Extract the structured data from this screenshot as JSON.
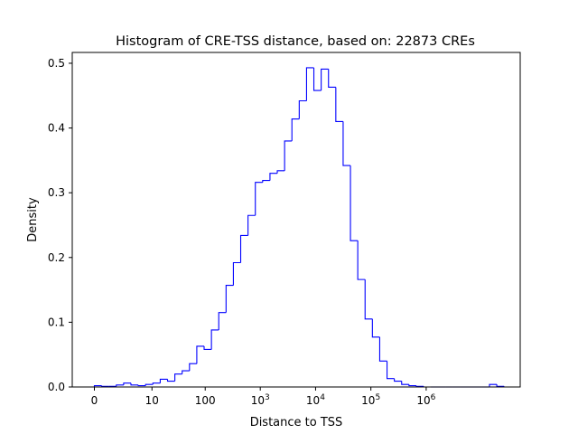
{
  "chart_data": {
    "type": "histogram",
    "title": "Histogram of CRE-TSS distance, based on: 22873 CREs",
    "xlabel": "Distance to TSS",
    "ylabel": "Density",
    "x_scale": "log1p (log10 of distance + 1)",
    "xlim": [
      -0.4,
      7.7
    ],
    "ylim": [
      0,
      0.5167
    ],
    "x_ticks": [
      {
        "value": 0,
        "label": "0"
      },
      {
        "value": 1.0414,
        "label": "10"
      },
      {
        "value": 2.0043,
        "label": "100"
      },
      {
        "value": 3.0,
        "label": "10",
        "sup": "3"
      },
      {
        "value": 4.0,
        "label": "10",
        "sup": "4"
      },
      {
        "value": 5.0,
        "label": "10",
        "sup": "5"
      },
      {
        "value": 6.0,
        "label": "10",
        "sup": "6"
      }
    ],
    "y_ticks": [
      {
        "value": 0.0,
        "label": "0.0"
      },
      {
        "value": 0.1,
        "label": "0.1"
      },
      {
        "value": 0.2,
        "label": "0.2"
      },
      {
        "value": 0.3,
        "label": "0.3"
      },
      {
        "value": 0.4,
        "label": "0.4"
      },
      {
        "value": 0.5,
        "label": "0.5"
      }
    ],
    "bin_start": 0.0,
    "bin_width": 0.1323,
    "densities": [
      0.002,
      0.001,
      0.001,
      0.003,
      0.006,
      0.003,
      0.002,
      0.004,
      0.006,
      0.012,
      0.009,
      0.02,
      0.025,
      0.036,
      0.063,
      0.058,
      0.088,
      0.115,
      0.157,
      0.192,
      0.234,
      0.265,
      0.316,
      0.319,
      0.33,
      0.334,
      0.38,
      0.414,
      0.442,
      0.493,
      0.458,
      0.491,
      0.463,
      0.41,
      0.342,
      0.226,
      0.166,
      0.105,
      0.077,
      0.04,
      0.013,
      0.009,
      0.004,
      0.002,
      0.001,
      0,
      0,
      0,
      0,
      0,
      0,
      0,
      0,
      0,
      0.004,
      0.001
    ],
    "color": "#0000ff",
    "grid": false,
    "legend": "none"
  }
}
